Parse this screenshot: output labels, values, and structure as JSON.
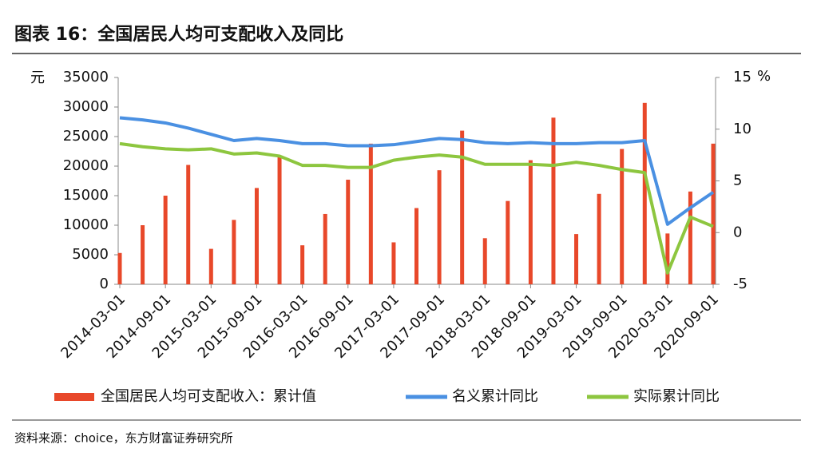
{
  "chart_data": {
    "type": "bar",
    "title": "图表 16：全国居民人均可支配收入及同比",
    "y_label": "元",
    "y2_label": "%",
    "source": "资料来源：choice，东方财富证券研究所",
    "categories": [
      "2014-03-01",
      null,
      "2014-09-01",
      null,
      "2015-03-01",
      null,
      "2015-09-01",
      null,
      "2016-03-01",
      null,
      "2016-09-01",
      null,
      "2017-03-01",
      null,
      "2017-09-01",
      null,
      "2018-03-01",
      null,
      "2018-09-01",
      null,
      "2019-03-01",
      null,
      "2019-09-01",
      null,
      "2020-03-01",
      null,
      "2020-09-01"
    ],
    "series": [
      {
        "name": "全国居民人均可支配收入：累计值",
        "type": "bar",
        "color": "#e8482a",
        "axis": "y",
        "values": [
          5300,
          10000,
          15000,
          20200,
          6000,
          10900,
          16300,
          21800,
          6600,
          11900,
          17700,
          23800,
          7100,
          12900,
          19300,
          26000,
          7800,
          14100,
          21000,
          28200,
          8500,
          15300,
          22900,
          30700,
          8600,
          15700,
          23800
        ]
      },
      {
        "name": "名义累计同比",
        "type": "line",
        "color": "#4a90e2",
        "axis": "y2",
        "values": [
          11.1,
          10.9,
          10.6,
          10.1,
          9.5,
          8.9,
          9.1,
          8.9,
          8.6,
          8.6,
          8.4,
          8.4,
          8.5,
          8.8,
          9.1,
          9.0,
          8.7,
          8.6,
          8.7,
          8.6,
          8.6,
          8.7,
          8.7,
          8.9,
          0.8,
          2.4,
          3.9
        ]
      },
      {
        "name": "实际累计同比",
        "type": "line",
        "color": "#8dc63f",
        "axis": "y2",
        "values": [
          8.6,
          8.3,
          8.1,
          8.0,
          8.1,
          7.6,
          7.7,
          7.4,
          6.5,
          6.5,
          6.3,
          6.3,
          7.0,
          7.3,
          7.5,
          7.3,
          6.6,
          6.6,
          6.6,
          6.5,
          6.8,
          6.5,
          6.1,
          5.8,
          -3.9,
          1.5,
          0.6
        ]
      }
    ],
    "ylim": [
      0,
      35000
    ],
    "yticks": [
      0,
      5000,
      10000,
      15000,
      20000,
      25000,
      30000,
      35000
    ],
    "y2lim": [
      -5,
      15
    ],
    "y2ticks": [
      -5,
      0,
      5,
      10,
      15
    ]
  }
}
